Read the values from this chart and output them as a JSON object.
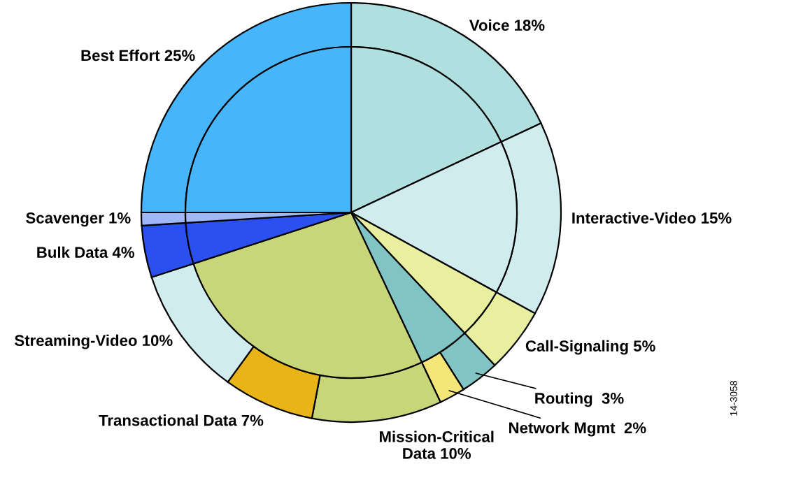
{
  "chart_data": {
    "type": "donut",
    "categories": [
      "Voice 18%",
      "Interactive-Video 15%",
      "Call-Signaling 5%",
      "Routing  3%",
      "Network Mgmt  2%",
      "Mission-Critical\nData 10%",
      "Transactional Data 7%",
      "Streaming-Video 10%",
      "Bulk Data 4%",
      "Scavenger 1%",
      "Best Effort 25%"
    ],
    "series": [
      {
        "values": [
          18,
          15,
          5,
          3,
          2,
          10,
          7,
          10,
          4,
          1,
          25
        ],
        "colors": [
          "#b0dfe0",
          "#d0ecee",
          "#e8f0a0",
          "#80c4c4",
          "#f5e67a",
          "#c8d67a",
          "#e8b418",
          "#d0ecee",
          "#2a50f0",
          "#a0b8f8",
          "#47b5fa"
        ]
      },
      {
        "values": [
          18,
          15,
          5,
          5,
          null,
          27,
          null,
          null,
          4,
          1,
          25
        ],
        "colors": [
          "#b0dfe0",
          "#d0ecee",
          "#e8f0a0",
          "#80c4c4",
          null,
          "#c8d67a",
          null,
          null,
          "#2a50f0",
          "#a0b8f8",
          "#47b5fa"
        ]
      }
    ],
    "annotations": [
      "14-3058"
    ]
  }
}
